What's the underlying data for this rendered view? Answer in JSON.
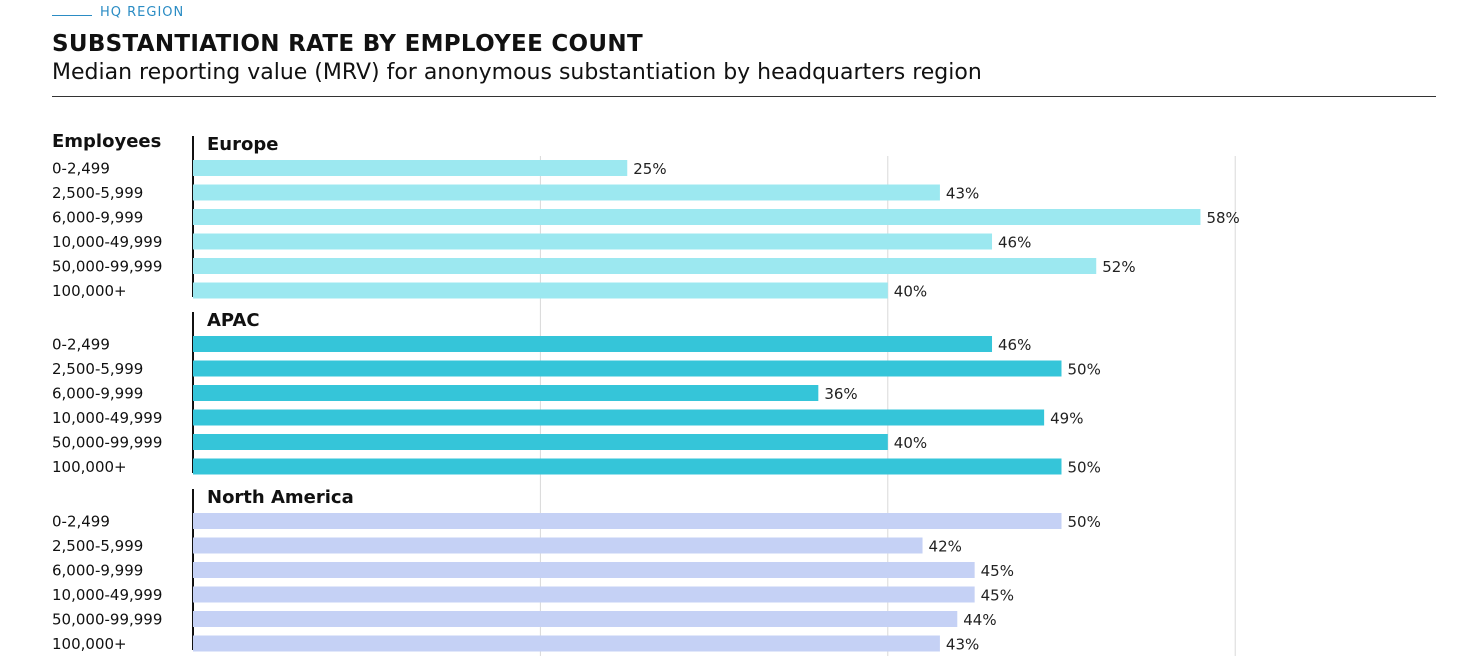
{
  "header": {
    "eyebrow": "HQ REGION",
    "title": "SUBSTANTIATION RATE BY EMPLOYEE COUNT",
    "subtitle": "Median reporting value (MRV) for anonymous substantiation by headquarters region"
  },
  "chart_data": {
    "type": "bar",
    "orientation": "horizontal",
    "category_header": "Employees",
    "categories": [
      "0-2,499",
      "2,500-5,999",
      "6,000-9,999",
      "10,000-49,999",
      "50,000-99,999",
      "100,000+"
    ],
    "unit": "%",
    "xlim": [
      0,
      60
    ],
    "gridlines": [
      20,
      40,
      60
    ],
    "series": [
      {
        "name": "Europe",
        "color": "#9ce8f0",
        "values": [
          25,
          43,
          58,
          46,
          52,
          40
        ]
      },
      {
        "name": "APAC",
        "color": "#35c5d9",
        "values": [
          46,
          50,
          36,
          49,
          40,
          50
        ]
      },
      {
        "name": "North America",
        "color": "#c5d1f5",
        "values": [
          50,
          42,
          45,
          45,
          44,
          43
        ]
      }
    ]
  }
}
